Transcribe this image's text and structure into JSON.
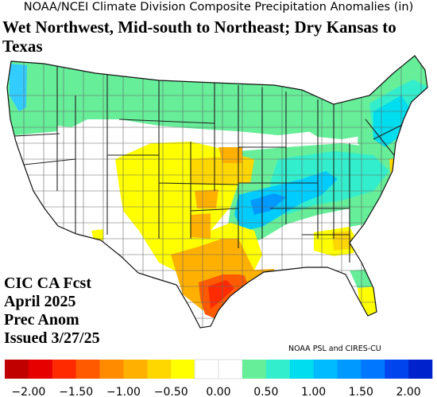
{
  "header": {
    "title": "NOAA/NCEI Climate Division Composite Precipitation Anomalies (in)",
    "headline": "Wet Northwest, Mid-south to Northeast; Dry Kansas to Texas"
  },
  "forecast_info": {
    "line1": "CIC CA Fcst",
    "line2": "April 2025",
    "line3": "Prec Anom",
    "line4": "Issued 3/27/25"
  },
  "credit": "NOAA PSL and CIRES-CU",
  "legend": {
    "colors": [
      "#c00000",
      "#e60000",
      "#ff2a00",
      "#ff5a00",
      "#ff8c00",
      "#ffb000",
      "#ffd700",
      "#ffff00",
      "#ffffff",
      "#ffffff",
      "#66ee99",
      "#33eecc",
      "#00ddee",
      "#00bbff",
      "#0099ff",
      "#0077ff",
      "#0044ee",
      "#0022cc"
    ],
    "tick_labels": [
      "−2.00",
      "−1.50",
      "−1.00",
      "−0.50",
      "0.00",
      "0.50",
      "1.00",
      "1.50",
      "2.00"
    ]
  },
  "map_regions": [
    {
      "name": "pacific-northwest",
      "category": "wet-0.5-0.75"
    },
    {
      "name": "olympic-peninsula",
      "category": "wet-1.0-1.25"
    },
    {
      "name": "northern-rockies",
      "category": "wet-0.5-0.75"
    },
    {
      "name": "northern-plains",
      "category": "wet-0.5-0.75"
    },
    {
      "name": "upper-midwest",
      "category": "wet-0.5-0.75"
    },
    {
      "name": "great-lakes",
      "category": "wet-0.5-0.75"
    },
    {
      "name": "new-england",
      "category": "wet-0.5-0.75"
    },
    {
      "name": "maine",
      "category": "wet-0.75-1.0"
    },
    {
      "name": "ohio-valley",
      "category": "wet-0.75-1.0"
    },
    {
      "name": "tennessee-valley",
      "category": "wet-1.0-1.5"
    },
    {
      "name": "mid-south",
      "category": "wet-1.0-1.5"
    },
    {
      "name": "new-jersey",
      "category": "dry-0.5-0.75"
    },
    {
      "name": "central-rockies",
      "category": "dry-0.25-0.5"
    },
    {
      "name": "kansas",
      "category": "dry-0.5-0.75"
    },
    {
      "name": "southern-plains",
      "category": "dry-0.25-0.5"
    },
    {
      "name": "west-texas",
      "category": "dry-0.25-0.5"
    },
    {
      "name": "central-texas",
      "category": "dry-0.75-1.0"
    },
    {
      "name": "texas-gulf-coast",
      "category": "dry-1.25-1.5"
    },
    {
      "name": "louisiana-coast",
      "category": "dry-0.75-1.0"
    },
    {
      "name": "southeast",
      "category": "dry-0.25-0.5"
    },
    {
      "name": "florida-north",
      "category": "wet-0.5-0.75"
    },
    {
      "name": "florida-south",
      "category": "dry-0.25-0.5"
    }
  ]
}
